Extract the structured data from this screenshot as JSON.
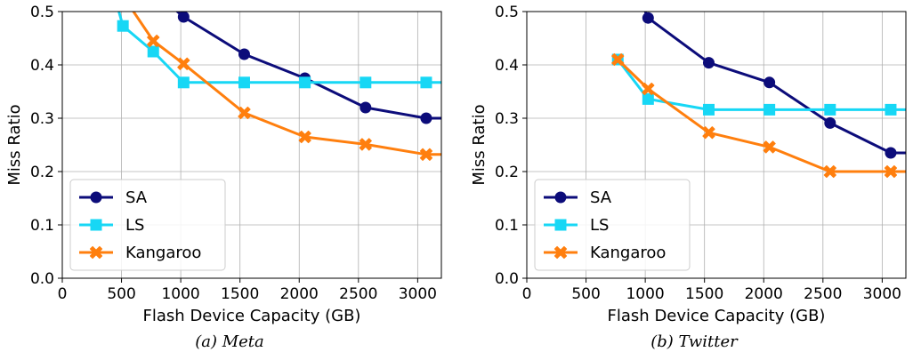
{
  "chart_data": [
    {
      "type": "line",
      "caption": "(a) Meta",
      "xlabel": "Flash Device Capacity (GB)",
      "ylabel": "Miss Ratio",
      "xlim": [
        0,
        3200
      ],
      "ylim": [
        0,
        0.5
      ],
      "xticks": [
        0,
        500,
        1000,
        1500,
        2000,
        2500,
        3000
      ],
      "yticks": [
        0.0,
        0.1,
        0.2,
        0.3,
        0.4,
        0.5
      ],
      "grid": true,
      "legend_position": "lower-left",
      "series": [
        {
          "name": "SA",
          "color": "#0c0c7a",
          "marker": "circle",
          "x": [
            450,
            1024,
            1536,
            2048,
            2560,
            3072,
            3200
          ],
          "y": [
            0.6,
            0.49,
            0.42,
            0.375,
            0.32,
            0.3,
            0.3
          ],
          "marker_mask": [
            false,
            true,
            true,
            true,
            true,
            true,
            false
          ]
        },
        {
          "name": "LS",
          "color": "#17d7f5",
          "marker": "square",
          "x": [
            440,
            512,
            768,
            1024,
            1536,
            2048,
            2560,
            3072,
            3200
          ],
          "y": [
            0.53,
            0.473,
            0.425,
            0.367,
            0.367,
            0.367,
            0.367,
            0.367,
            0.367
          ],
          "marker_mask": [
            false,
            true,
            true,
            true,
            true,
            true,
            true,
            true,
            false
          ]
        },
        {
          "name": "Kangaroo",
          "color": "#ff7f0e",
          "marker": "x",
          "x": [
            540,
            768,
            1024,
            1536,
            2048,
            2560,
            3072,
            3200
          ],
          "y": [
            0.52,
            0.445,
            0.402,
            0.31,
            0.265,
            0.251,
            0.232,
            0.232
          ],
          "marker_mask": [
            false,
            true,
            true,
            true,
            true,
            true,
            true,
            false
          ]
        }
      ]
    },
    {
      "type": "line",
      "caption": "(b) Twitter",
      "xlabel": "Flash Device Capacity (GB)",
      "ylabel": "Miss Ratio",
      "xlim": [
        0,
        3200
      ],
      "ylim": [
        0,
        0.5
      ],
      "xticks": [
        0,
        500,
        1000,
        1500,
        2000,
        2500,
        3000
      ],
      "yticks": [
        0.0,
        0.1,
        0.2,
        0.3,
        0.4,
        0.5
      ],
      "grid": true,
      "legend_position": "lower-left",
      "series": [
        {
          "name": "SA",
          "color": "#0c0c7a",
          "marker": "circle",
          "x": [
            1000,
            1024,
            1536,
            2048,
            2560,
            3072,
            3200
          ],
          "y": [
            0.5,
            0.488,
            0.404,
            0.367,
            0.291,
            0.235,
            0.235
          ],
          "marker_mask": [
            false,
            true,
            true,
            true,
            true,
            true,
            false
          ]
        },
        {
          "name": "LS",
          "color": "#17d7f5",
          "marker": "square",
          "x": [
            768,
            1024,
            1536,
            2048,
            2560,
            3072,
            3200
          ],
          "y": [
            0.41,
            0.336,
            0.316,
            0.316,
            0.316,
            0.316,
            0.316
          ],
          "marker_mask": [
            true,
            true,
            true,
            true,
            true,
            true,
            false
          ]
        },
        {
          "name": "Kangaroo",
          "color": "#ff7f0e",
          "marker": "x",
          "x": [
            768,
            1024,
            1536,
            2048,
            2560,
            3072,
            3200
          ],
          "y": [
            0.41,
            0.355,
            0.273,
            0.246,
            0.2,
            0.2,
            0.2
          ],
          "marker_mask": [
            true,
            true,
            true,
            true,
            true,
            true,
            false
          ]
        }
      ]
    }
  ]
}
